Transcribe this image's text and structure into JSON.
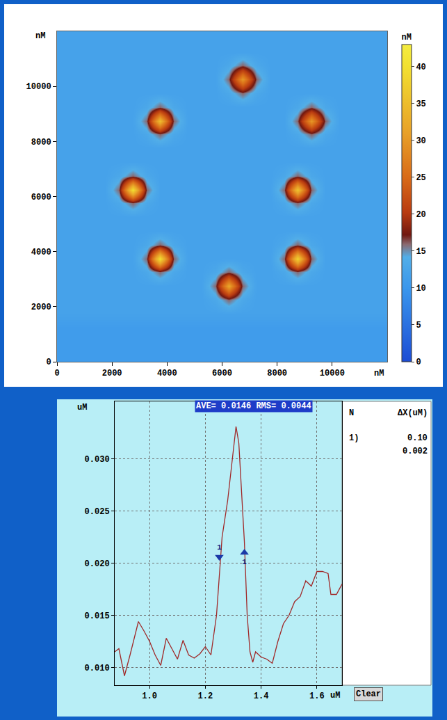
{
  "chart_data": [
    {
      "type": "heatmap",
      "xlabel": "nM",
      "ylabel": "nM",
      "x": [
        250,
        750,
        1250,
        1750,
        2250,
        2750,
        3250,
        3750,
        4250,
        4750,
        5250,
        5750,
        6250,
        6750,
        7250,
        7750,
        8250,
        8750,
        9250,
        9750,
        10250,
        10750,
        11250,
        11750
      ],
      "y": [
        250,
        750,
        1250,
        1750,
        2250,
        2750,
        3250,
        3750,
        4250,
        4750,
        5250,
        5750,
        6250,
        6750,
        7250,
        7750,
        8250,
        8750,
        9250,
        9750,
        10250,
        10750,
        11250,
        11750
      ],
      "z": [
        [
          11,
          11,
          11,
          11,
          11,
          11,
          11,
          11,
          11,
          11,
          11,
          11,
          11,
          11,
          11,
          11,
          11,
          11,
          11,
          11,
          11,
          11,
          11,
          11
        ],
        [
          11,
          11,
          11,
          11,
          11,
          11,
          11,
          11,
          11,
          11,
          11,
          11,
          11,
          11,
          11,
          11,
          11,
          11,
          11,
          11,
          11,
          11,
          11,
          11
        ],
        [
          11,
          11,
          11,
          11,
          11,
          11,
          11,
          11,
          11,
          11,
          11,
          11,
          11,
          11,
          11,
          11,
          11,
          11,
          11,
          11,
          11,
          11,
          11,
          11
        ],
        [
          12,
          12,
          12,
          12,
          12,
          12,
          12,
          12,
          12,
          12,
          12,
          12,
          12,
          12,
          12,
          12,
          12,
          12,
          12,
          12,
          12,
          12,
          12,
          12
        ],
        [
          12,
          12,
          12,
          12,
          12,
          12,
          12,
          12,
          12,
          12,
          12,
          13,
          16,
          13,
          12,
          12,
          12,
          12,
          12,
          12,
          12,
          12,
          12,
          12
        ],
        [
          12,
          12,
          12,
          12,
          12,
          12,
          12,
          12,
          12,
          12,
          12,
          16,
          32,
          16,
          12,
          12,
          12,
          12,
          12,
          12,
          12,
          12,
          12,
          12
        ],
        [
          12,
          12,
          12,
          12,
          12,
          12,
          13,
          16,
          13,
          12,
          12,
          13,
          16,
          13,
          12,
          12,
          13,
          16,
          13,
          12,
          12,
          12,
          12,
          12
        ],
        [
          12,
          12,
          12,
          12,
          12,
          12,
          16,
          40,
          16,
          12,
          12,
          12,
          12,
          12,
          12,
          12,
          16,
          38,
          16,
          12,
          12,
          12,
          12,
          12
        ],
        [
          12,
          12,
          12,
          12,
          12,
          12,
          13,
          16,
          13,
          12,
          12,
          12,
          12,
          12,
          12,
          12,
          13,
          16,
          13,
          12,
          12,
          12,
          12,
          12
        ],
        [
          12,
          12,
          12,
          12,
          12,
          12,
          12,
          12,
          12,
          12,
          12,
          12,
          12,
          12,
          12,
          12,
          12,
          12,
          12,
          12,
          12,
          12,
          12,
          12
        ],
        [
          12,
          12,
          12,
          12,
          12,
          12,
          12,
          12,
          12,
          12,
          12,
          12,
          12,
          12,
          12,
          12,
          12,
          12,
          12,
          12,
          12,
          12,
          12,
          12
        ],
        [
          12,
          12,
          12,
          12,
          13,
          16,
          13,
          12,
          12,
          12,
          12,
          12,
          12,
          12,
          12,
          12,
          13,
          16,
          13,
          12,
          12,
          12,
          12,
          12
        ],
        [
          12,
          12,
          12,
          12,
          16,
          40,
          16,
          12,
          12,
          12,
          12,
          12,
          12,
          12,
          12,
          12,
          16,
          36,
          16,
          12,
          12,
          12,
          12,
          12
        ],
        [
          12,
          12,
          12,
          12,
          13,
          16,
          13,
          12,
          12,
          12,
          12,
          12,
          12,
          12,
          12,
          12,
          13,
          16,
          13,
          12,
          12,
          12,
          12,
          12
        ],
        [
          12,
          12,
          12,
          12,
          12,
          12,
          12,
          12,
          12,
          12,
          12,
          12,
          12,
          12,
          12,
          12,
          12,
          12,
          12,
          12,
          12,
          12,
          12,
          12
        ],
        [
          12,
          12,
          12,
          12,
          12,
          12,
          12,
          12,
          12,
          12,
          12,
          12,
          12,
          12,
          12,
          12,
          12,
          12,
          12,
          12,
          12,
          12,
          12,
          12
        ],
        [
          12,
          12,
          12,
          12,
          12,
          12,
          13,
          16,
          13,
          12,
          12,
          12,
          12,
          12,
          12,
          12,
          12,
          13,
          16,
          13,
          12,
          12,
          12,
          12
        ],
        [
          12,
          12,
          12,
          12,
          12,
          12,
          16,
          35,
          16,
          12,
          12,
          12,
          12,
          12,
          12,
          12,
          12,
          16,
          30,
          16,
          12,
          12,
          12,
          12
        ],
        [
          12,
          12,
          12,
          12,
          12,
          12,
          13,
          16,
          13,
          12,
          12,
          12,
          12,
          12,
          12,
          12,
          12,
          13,
          16,
          13,
          12,
          12,
          12,
          12
        ],
        [
          12,
          12,
          12,
          12,
          12,
          12,
          12,
          12,
          12,
          12,
          12,
          12,
          13,
          16,
          13,
          12,
          12,
          12,
          12,
          12,
          12,
          12,
          12,
          12
        ],
        [
          12,
          12,
          12,
          12,
          12,
          12,
          12,
          12,
          12,
          12,
          12,
          12,
          16,
          30,
          16,
          12,
          12,
          12,
          12,
          12,
          12,
          12,
          12,
          12
        ],
        [
          12,
          12,
          12,
          12,
          12,
          12,
          12,
          12,
          12,
          12,
          12,
          12,
          13,
          16,
          13,
          12,
          12,
          12,
          12,
          12,
          12,
          12,
          12,
          12
        ],
        [
          12,
          12,
          12,
          12,
          12,
          12,
          12,
          12,
          12,
          12,
          12,
          12,
          12,
          12,
          12,
          12,
          12,
          12,
          12,
          12,
          12,
          12,
          12,
          12
        ],
        [
          12,
          12,
          12,
          12,
          12,
          12,
          12,
          12,
          12,
          12,
          12,
          12,
          12,
          12,
          12,
          12,
          12,
          12,
          12,
          12,
          12,
          12,
          12,
          12
        ]
      ],
      "xlim": [
        0,
        12000
      ],
      "ylim": [
        0,
        12000
      ],
      "xticks": [
        0,
        2000,
        4000,
        6000,
        8000,
        10000
      ],
      "yticks": [
        0,
        2000,
        4000,
        6000,
        8000,
        10000
      ],
      "colorbar": {
        "title": "nM",
        "range": [
          0,
          43
        ],
        "ticks": [
          0,
          5,
          10,
          15,
          20,
          25,
          30,
          35,
          40
        ]
      }
    },
    {
      "type": "line",
      "title": "AVE= 0.0146 RMS= 0.0044",
      "xlabel": "uM",
      "ylabel": "uM",
      "color": "#a02828",
      "grid": true,
      "x": [
        0.875,
        0.89,
        0.91,
        0.93,
        0.96,
        0.98,
        1.0,
        1.02,
        1.04,
        1.06,
        1.08,
        1.1,
        1.12,
        1.14,
        1.16,
        1.18,
        1.2,
        1.22,
        1.24,
        1.26,
        1.28,
        1.3,
        1.31,
        1.32,
        1.34,
        1.35,
        1.36,
        1.37,
        1.38,
        1.4,
        1.42,
        1.44,
        1.46,
        1.48,
        1.5,
        1.52,
        1.54,
        1.56,
        1.58,
        1.6,
        1.62,
        1.64,
        1.65,
        1.67,
        1.69
      ],
      "values": [
        0.0115,
        0.0118,
        0.0092,
        0.0112,
        0.0144,
        0.0135,
        0.0125,
        0.0112,
        0.0102,
        0.0128,
        0.0118,
        0.0108,
        0.0126,
        0.0112,
        0.0109,
        0.0113,
        0.012,
        0.0112,
        0.015,
        0.0225,
        0.026,
        0.031,
        0.0331,
        0.0315,
        0.022,
        0.015,
        0.0115,
        0.0105,
        0.0115,
        0.011,
        0.0108,
        0.0104,
        0.0125,
        0.0142,
        0.015,
        0.0163,
        0.0168,
        0.0183,
        0.0178,
        0.0192,
        0.0192,
        0.019,
        0.017,
        0.017,
        0.018
      ],
      "xlim": [
        0.875,
        1.69
      ],
      "ylim": [
        0.0083,
        0.0355
      ],
      "xticks": [
        {
          "value": 1,
          "label": "1.0"
        },
        1.2,
        1.4,
        1.6
      ],
      "yticks": [
        {
          "value": 0.01,
          "label": "0.010"
        },
        {
          "value": 0.015,
          "label": "0.015"
        },
        {
          "value": 0.02,
          "label": "0.020"
        },
        {
          "value": 0.025,
          "label": "0.025"
        },
        {
          "value": 0.03,
          "label": "0.030"
        }
      ],
      "markers": [
        {
          "x": 1.25,
          "y": 0.0206,
          "label": "1",
          "marker": "triangle-down"
        },
        {
          "x": 1.34,
          "y": 0.021,
          "label": "1",
          "marker": "triangle-up"
        }
      ],
      "table": {
        "header": [
          "N",
          "ΔX(uM)"
        ],
        "rows": [
          {
            "label": "1)",
            "values": [
              "0.10",
              "0.002"
            ]
          }
        ]
      },
      "buttons": [
        "Clear"
      ]
    }
  ]
}
